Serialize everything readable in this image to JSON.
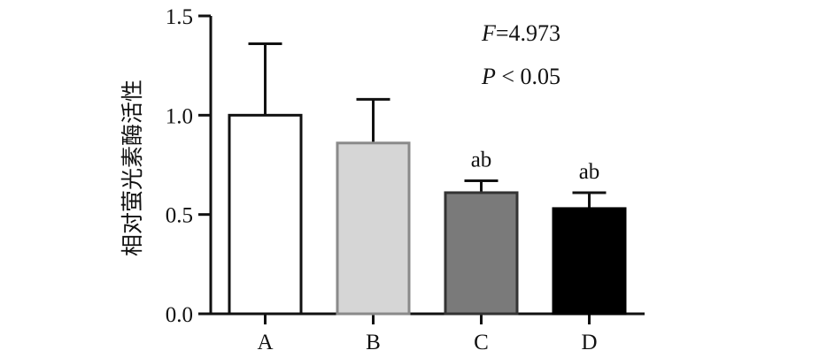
{
  "chart_data": {
    "type": "bar",
    "ylabel": "相对萤光素酶活性",
    "xlabel": "",
    "title": "",
    "ylim": [
      0,
      1.5
    ],
    "yticks": [
      "0.0",
      "0.5",
      "1.0",
      "1.5"
    ],
    "categories": [
      "A",
      "B",
      "C",
      "D"
    ],
    "values": [
      1.0,
      0.86,
      0.61,
      0.53
    ],
    "error_upper": [
      1.36,
      1.08,
      0.67,
      0.61
    ],
    "significance": [
      "",
      "",
      "ab",
      "ab"
    ],
    "fill_colors": [
      "#ffffff",
      "#d6d6d6",
      "#7a7a7a",
      "#000000"
    ],
    "stroke_colors": [
      "#111111",
      "#8a8a8a",
      "#333333",
      "#000000"
    ],
    "grid": false
  },
  "annotations": {
    "f_label": "F",
    "f_value": "=4.973",
    "p_label": "P",
    "p_value": " < 0.05"
  }
}
